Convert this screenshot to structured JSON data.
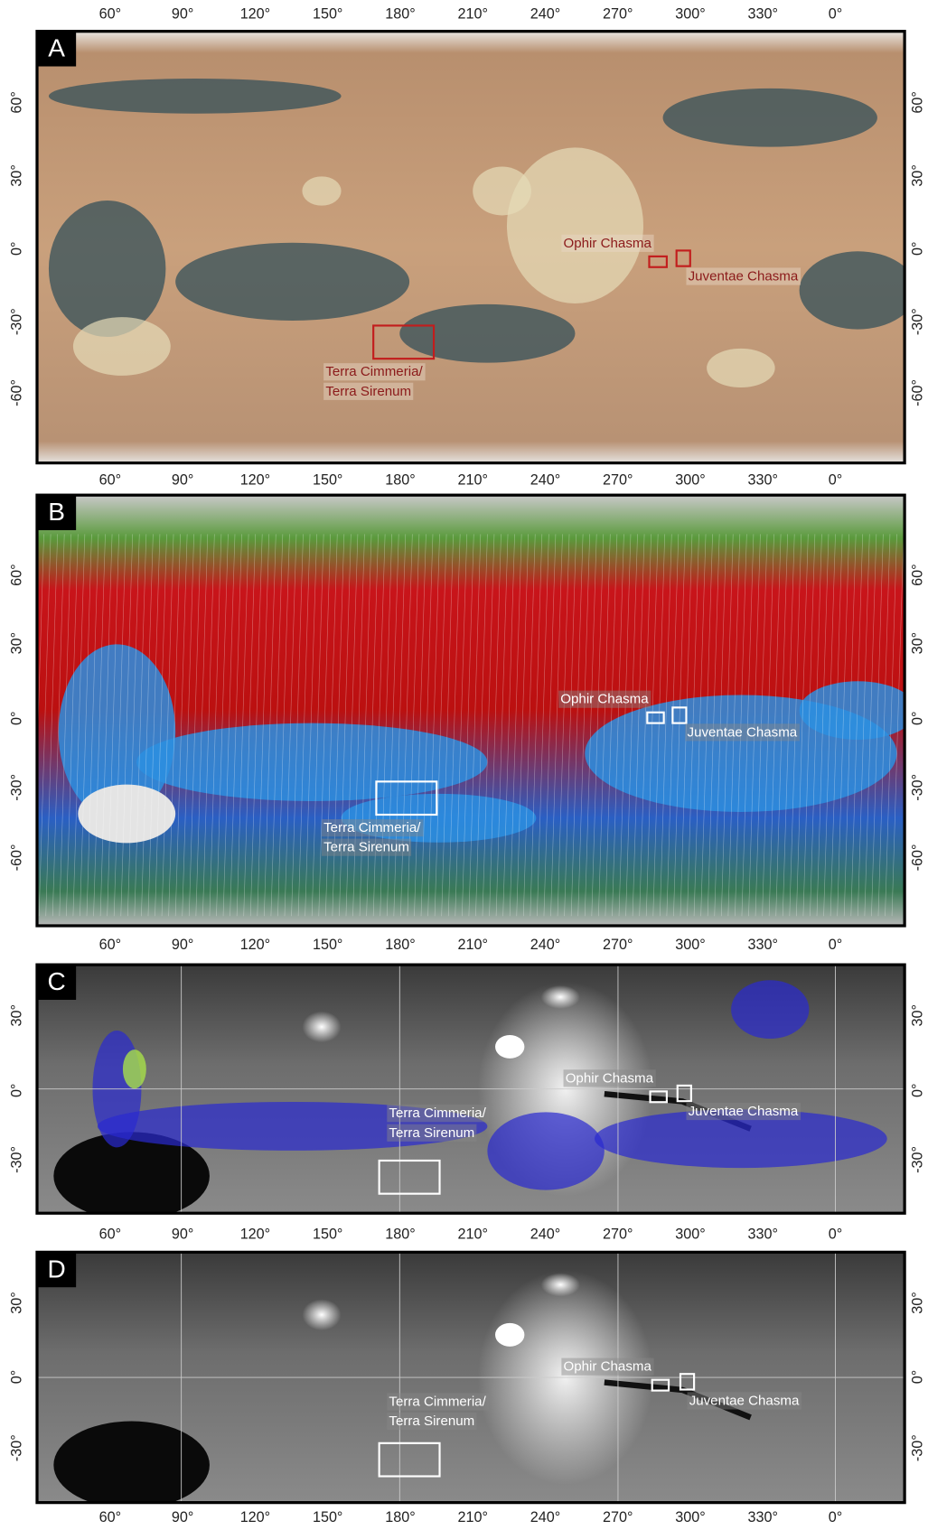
{
  "lon_labels": [
    "60°",
    "90°",
    "120°",
    "150°",
    "180°",
    "210°",
    "240°",
    "270°",
    "300°",
    "330°",
    "0°"
  ],
  "panels": [
    {
      "label": "A",
      "lat_labels": [
        "60°",
        "30°",
        "0°",
        "-30°",
        "-60°"
      ],
      "annotations": [
        {
          "lines": [
            "Ophir Chasma"
          ]
        },
        {
          "lines": [
            "Juventae Chasma"
          ]
        },
        {
          "lines": [
            "Terra Cimmeria/",
            "Terra Sirenum"
          ]
        }
      ]
    },
    {
      "label": "B",
      "lat_labels": [
        "60°",
        "30°",
        "0°",
        "-30°",
        "-60°"
      ],
      "annotations": [
        {
          "lines": [
            "Ophir Chasma"
          ]
        },
        {
          "lines": [
            "Juventae Chasma"
          ]
        },
        {
          "lines": [
            "Terra Cimmeria/",
            "Terra Sirenum"
          ]
        }
      ]
    },
    {
      "label": "C",
      "lat_labels": [
        "30°",
        "0°",
        "-30°"
      ],
      "annotations": [
        {
          "lines": [
            "Ophir Chasma"
          ]
        },
        {
          "lines": [
            "Juventae Chasma"
          ]
        },
        {
          "lines": [
            "Terra Cimmeria/",
            "Terra Sirenum"
          ]
        }
      ]
    },
    {
      "label": "D",
      "lat_labels": [
        "30°",
        "0°",
        "-30°"
      ],
      "annotations": [
        {
          "lines": [
            "Ophir Chasma"
          ]
        },
        {
          "lines": [
            "Juventae Chasma"
          ]
        },
        {
          "lines": [
            "Terra Cimmeria/",
            "Terra Sirenum"
          ]
        }
      ]
    }
  ]
}
